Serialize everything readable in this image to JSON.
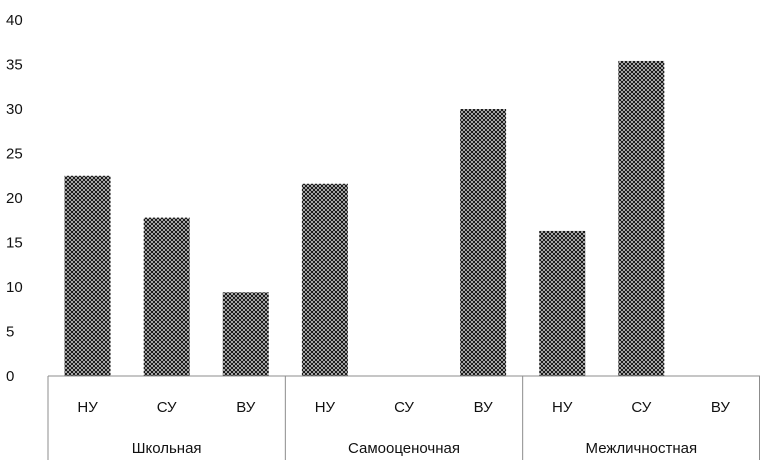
{
  "chart_data": {
    "type": "bar",
    "ylim": [
      0,
      40
    ],
    "yticks": [
      0,
      5,
      10,
      15,
      20,
      25,
      30,
      35,
      40
    ],
    "grid": false,
    "groups": [
      {
        "label": "Школьная",
        "categories": [
          "НУ",
          "СУ",
          "ВУ"
        ],
        "values": [
          22.5,
          17.8,
          9.4
        ]
      },
      {
        "label": "Самооценочная",
        "categories": [
          "НУ",
          "СУ",
          "ВУ"
        ],
        "values": [
          21.6,
          0,
          30
        ]
      },
      {
        "label": "Межличностная",
        "categories": [
          "НУ",
          "СУ",
          "ВУ"
        ],
        "values": [
          16.3,
          35.4,
          0
        ]
      }
    ],
    "bar_fill": "#1a1a1a",
    "bar_pattern": "crosshatch"
  }
}
